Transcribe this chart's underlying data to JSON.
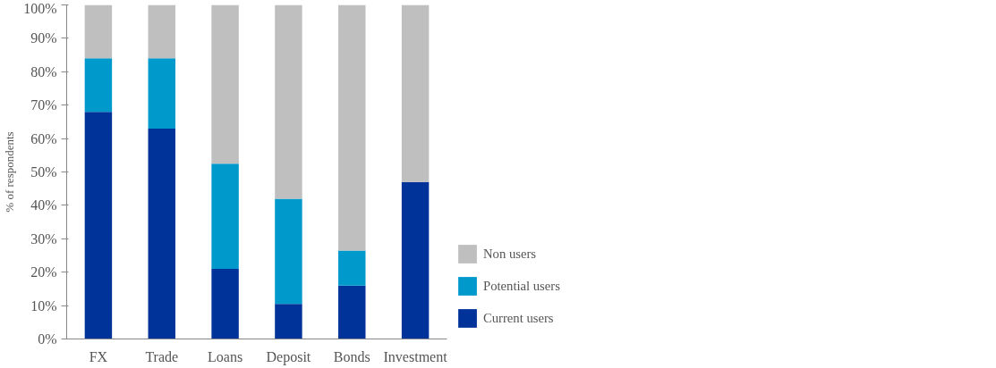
{
  "chart_data": {
    "type": "bar",
    "stacked": true,
    "ylabel": "% of respondents",
    "categories": [
      "FX",
      "Trade",
      "Loans",
      "Deposit",
      "Bonds",
      "Investment"
    ],
    "series": [
      {
        "name": "Current users",
        "color": "#003399",
        "values": [
          68,
          63,
          21,
          10.5,
          16,
          47
        ]
      },
      {
        "name": "Potential users",
        "color": "#0099cc",
        "values": [
          16,
          21,
          31.5,
          31.5,
          10.5,
          0
        ]
      },
      {
        "name": "Non users",
        "color": "#bfbfbf",
        "values": [
          16,
          16,
          47.5,
          58,
          73.5,
          53
        ]
      }
    ],
    "ylim": [
      0,
      100
    ],
    "yticks": [
      {
        "value": 0,
        "label": "0%"
      },
      {
        "value": 10,
        "label": "10%"
      },
      {
        "value": 20,
        "label": "20%"
      },
      {
        "value": 30,
        "label": "30%"
      },
      {
        "value": 40,
        "label": "40%"
      },
      {
        "value": 50,
        "label": "50%"
      },
      {
        "value": 60,
        "label": "60%"
      },
      {
        "value": 70,
        "label": "70%"
      },
      {
        "value": 80,
        "label": "80%"
      },
      {
        "value": 90,
        "label": "90%"
      },
      {
        "value": 100,
        "label": "100%"
      }
    ],
    "grid": false,
    "legend": "right"
  }
}
